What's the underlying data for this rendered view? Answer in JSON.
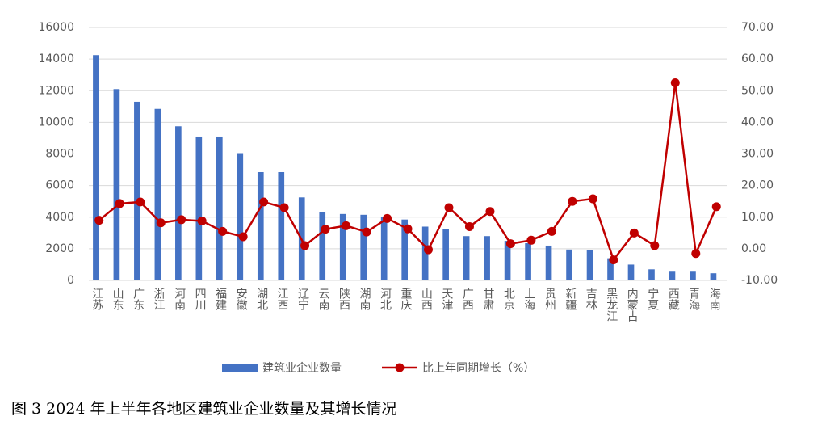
{
  "chart_data": {
    "type": "bar-line",
    "categories": [
      "江苏",
      "山东",
      "广东",
      "浙江",
      "河南",
      "四川",
      "福建",
      "安徽",
      "湖北",
      "江西",
      "辽宁",
      "云南",
      "陕西",
      "湖南",
      "河北",
      "重庆",
      "山西",
      "天津",
      "广西",
      "甘肃",
      "北京",
      "上海",
      "贵州",
      "新疆",
      "吉林",
      "黑龙江",
      "内蒙古",
      "宁夏",
      "西藏",
      "青海",
      "海南"
    ],
    "series": [
      {
        "name": "建筑业企业数量",
        "type": "bar",
        "color": "#4472c4",
        "values": [
          14250,
          12100,
          11300,
          10850,
          9750,
          9100,
          9100,
          8050,
          6850,
          6850,
          5250,
          4300,
          4200,
          4150,
          4000,
          3850,
          3400,
          3250,
          2800,
          2800,
          2500,
          2350,
          2200,
          1950,
          1900,
          1400,
          1000,
          700,
          550,
          550,
          450
        ]
      },
      {
        "name": "比上年同期增长（%）",
        "type": "line",
        "axis": "y2",
        "color": "#c00000",
        "values": [
          9.0,
          14.3,
          14.8,
          8.2,
          9.2,
          8.8,
          5.5,
          3.8,
          14.8,
          13.0,
          1.0,
          6.2,
          7.3,
          5.3,
          9.6,
          6.3,
          -0.3,
          13.0,
          7.0,
          11.8,
          1.6,
          2.7,
          5.5,
          15.0,
          15.8,
          -3.5,
          5.0,
          1.0,
          52.5,
          -1.5,
          13.3
        ]
      }
    ],
    "ylim": [
      0,
      16000
    ],
    "yticks": [
      0,
      2000,
      4000,
      6000,
      8000,
      10000,
      12000,
      14000,
      16000
    ],
    "y2lim": [
      -10,
      70
    ],
    "y2ticks": [
      {
        "value": -10,
        "label": "-10.00"
      },
      {
        "value": 0,
        "label": "0.00"
      },
      {
        "value": 10,
        "label": "10.00"
      },
      {
        "value": 20,
        "label": "20.00"
      },
      {
        "value": 30,
        "label": "30.00"
      },
      {
        "value": 40,
        "label": "40.00"
      },
      {
        "value": 50,
        "label": "50.00"
      },
      {
        "value": 60,
        "label": "60.00"
      },
      {
        "value": 70,
        "label": "70.00"
      }
    ],
    "grid": true,
    "legend": "bottom"
  },
  "caption": "图 3 2024 年上半年各地区建筑业企业数量及其增长情况"
}
